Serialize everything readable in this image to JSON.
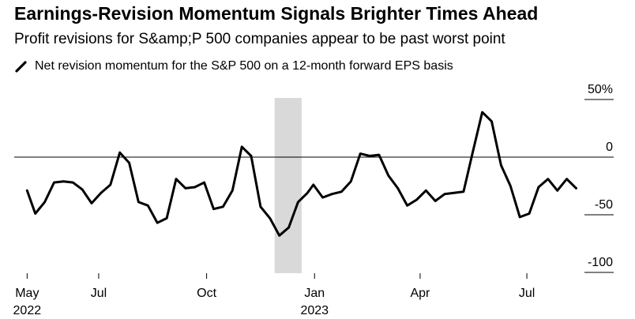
{
  "title": "Earnings-Revision Momentum Signals Brighter Times Ahead",
  "subtitle": "Profit revisions for S&amp;P 500 companies appear to be past worst point",
  "chart_data": {
    "type": "line",
    "series": [
      {
        "name": "Net revision momentum for the S&P 500 on a 12-month forward EPS basis",
        "color": "#000000",
        "points": [
          [
            "2022-05-01",
            -29
          ],
          [
            "2022-05-08",
            -49
          ],
          [
            "2022-05-16",
            -39
          ],
          [
            "2022-05-24",
            -22
          ],
          [
            "2022-06-01",
            -21
          ],
          [
            "2022-06-09",
            -22
          ],
          [
            "2022-06-17",
            -28
          ],
          [
            "2022-06-25",
            -40
          ],
          [
            "2022-07-03",
            -31
          ],
          [
            "2022-07-11",
            -24
          ],
          [
            "2022-07-19",
            4
          ],
          [
            "2022-07-27",
            -5
          ],
          [
            "2022-08-04",
            -39
          ],
          [
            "2022-08-12",
            -42
          ],
          [
            "2022-08-20",
            -57
          ],
          [
            "2022-08-28",
            -53
          ],
          [
            "2022-09-05",
            -19
          ],
          [
            "2022-09-13",
            -27
          ],
          [
            "2022-09-21",
            -26
          ],
          [
            "2022-09-29",
            -22
          ],
          [
            "2022-10-07",
            -45
          ],
          [
            "2022-10-15",
            -43
          ],
          [
            "2022-10-23",
            -29
          ],
          [
            "2022-10-31",
            9
          ],
          [
            "2022-11-08",
            1
          ],
          [
            "2022-11-16",
            -43
          ],
          [
            "2022-11-24",
            -53
          ],
          [
            "2022-12-02",
            -68
          ],
          [
            "2022-12-10",
            -61
          ],
          [
            "2022-12-18",
            -39
          ],
          [
            "2022-12-26",
            -31
          ],
          [
            "2022-12-31",
            -24
          ],
          [
            "2023-01-08",
            -35
          ],
          [
            "2023-01-16",
            -32
          ],
          [
            "2023-01-24",
            -30
          ],
          [
            "2023-02-01",
            -21
          ],
          [
            "2023-02-09",
            3
          ],
          [
            "2023-02-17",
            1
          ],
          [
            "2023-02-25",
            2
          ],
          [
            "2023-03-05",
            -16
          ],
          [
            "2023-03-13",
            -27
          ],
          [
            "2023-03-21",
            -42
          ],
          [
            "2023-03-29",
            -37
          ],
          [
            "2023-04-06",
            -29
          ],
          [
            "2023-04-14",
            -38
          ],
          [
            "2023-04-22",
            -32
          ],
          [
            "2023-04-30",
            -31
          ],
          [
            "2023-05-08",
            -30
          ],
          [
            "2023-05-16",
            5
          ],
          [
            "2023-05-24",
            39
          ],
          [
            "2023-06-01",
            31
          ],
          [
            "2023-06-09",
            -7
          ],
          [
            "2023-06-17",
            -25
          ],
          [
            "2023-06-25",
            -52
          ],
          [
            "2023-07-03",
            -49
          ],
          [
            "2023-07-11",
            -26
          ],
          [
            "2023-07-19",
            -19
          ],
          [
            "2023-07-27",
            -29
          ],
          [
            "2023-08-04",
            -19
          ],
          [
            "2023-08-12",
            -27
          ]
        ]
      }
    ],
    "x_ticks": [
      {
        "date": "2022-05-01",
        "label": "May",
        "year": "2022"
      },
      {
        "date": "2022-07-01",
        "label": "Jul"
      },
      {
        "date": "2022-10-01",
        "label": "Oct"
      },
      {
        "date": "2023-01-01",
        "label": "Jan",
        "year": "2023"
      },
      {
        "date": "2023-04-01",
        "label": "Apr"
      },
      {
        "date": "2023-07-01",
        "label": "Jul"
      }
    ],
    "xlim": [
      "2022-04-20",
      "2023-09-13"
    ],
    "y_ticks": [
      50,
      0,
      -50,
      -100
    ],
    "y_tick_labels": [
      "50%",
      "0",
      "-50",
      "-100"
    ],
    "ylim": [
      -100,
      50
    ],
    "shaded_band": {
      "from": "2022-11-28",
      "to": "2022-12-21",
      "color": "#d9d9d9"
    },
    "zero_line": true,
    "axis_side": "right",
    "grid": false
  }
}
